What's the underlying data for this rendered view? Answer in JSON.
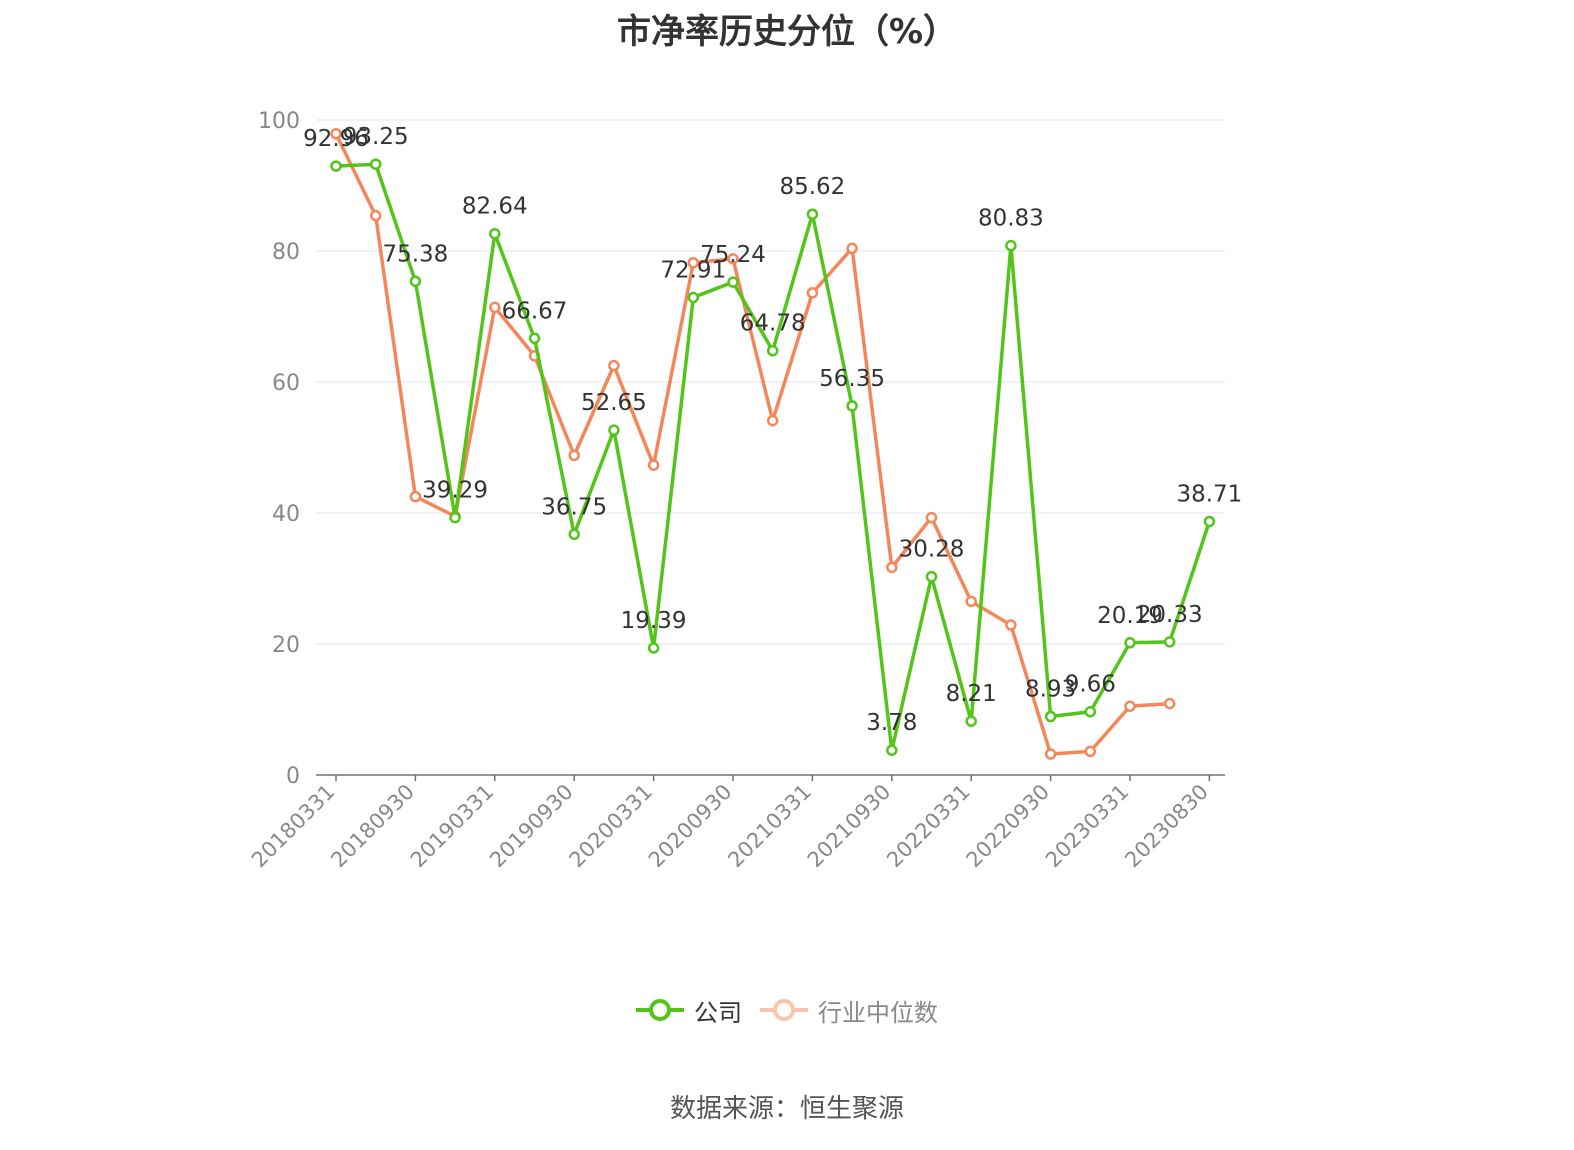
{
  "chart_data": {
    "type": "line",
    "title": "市净率历史分位（%）",
    "xlabel": "",
    "ylabel": "",
    "ylim": [
      0,
      100
    ],
    "yticks": [
      0,
      20,
      40,
      60,
      80,
      100
    ],
    "x": [
      "20180331",
      "20180630",
      "20180930",
      "20181231",
      "20190331",
      "20190630",
      "20190930",
      "20191231",
      "20200331",
      "20200630",
      "20200930",
      "20201231",
      "20210331",
      "20210630",
      "20210930",
      "20211231",
      "20220331",
      "20220630",
      "20220930",
      "20221231",
      "20230331",
      "20230630",
      "20230830"
    ],
    "xtick_labels": [
      "20180331",
      "20180930",
      "20190331",
      "20190930",
      "20200331",
      "20200930",
      "20210331",
      "20210930",
      "20220331",
      "20220930",
      "20230331",
      "20230830"
    ],
    "grid": true,
    "legend_position": "bottom",
    "series": [
      {
        "name": "公司",
        "color": "#52c41a",
        "show_labels": true,
        "values": [
          92.96,
          93.25,
          75.38,
          39.29,
          82.64,
          66.67,
          36.75,
          52.65,
          19.39,
          72.91,
          75.24,
          64.78,
          85.62,
          56.35,
          3.78,
          30.28,
          8.21,
          80.83,
          8.93,
          9.66,
          20.19,
          20.33,
          38.71
        ]
      },
      {
        "name": "行业中位数",
        "color": "#f4875a",
        "show_labels": false,
        "values": [
          97.9,
          85.4,
          42.5,
          39.5,
          71.4,
          64.0,
          48.8,
          62.5,
          47.3,
          78.2,
          78.8,
          54.1,
          73.6,
          80.4,
          31.7,
          39.3,
          26.5,
          22.9,
          3.2,
          3.6,
          10.5,
          10.9,
          null
        ]
      }
    ]
  },
  "legend": {
    "items": [
      {
        "label": "公司",
        "color": "#52c41a"
      },
      {
        "label": "行业中位数",
        "color": "#f4875a"
      }
    ]
  },
  "source_text": "数据来源：恒生聚源"
}
